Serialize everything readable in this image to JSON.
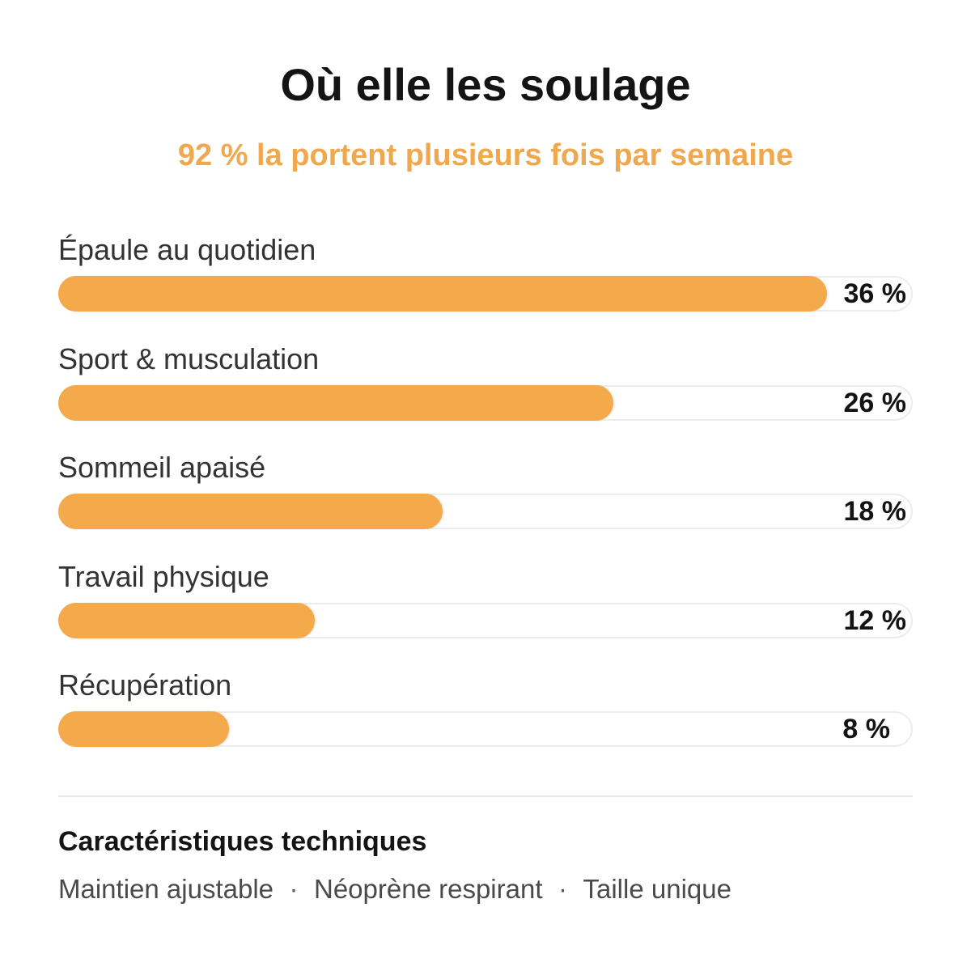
{
  "header": {
    "title": "Où elle les soulage",
    "subtitle": "92 % la portent plusieurs fois par semaine"
  },
  "colors": {
    "accent": "#f4a94a",
    "subtitle": "#f0a84e",
    "track_border": "#ececec"
  },
  "chart_data": {
    "type": "bar",
    "orientation": "horizontal",
    "title": "Où elle les soulage",
    "subtitle": "92 % la portent plusieurs fois par semaine",
    "categories": [
      "Épaule au quotidien",
      "Sport & musculation",
      "Sommeil apaisé",
      "Travail physique",
      "Récupération"
    ],
    "values": [
      36,
      26,
      18,
      12,
      8
    ],
    "value_labels": [
      "36 %",
      "26 %",
      "18 %",
      "12 %",
      "8 %"
    ],
    "unit": "%",
    "xlim": [
      0,
      40
    ],
    "grid": false,
    "legend": "none"
  },
  "specs": {
    "title": "Caractéristiques techniques",
    "items": [
      "Maintien ajustable",
      "Néoprène respirant",
      "Taille unique"
    ],
    "separator": "·"
  }
}
